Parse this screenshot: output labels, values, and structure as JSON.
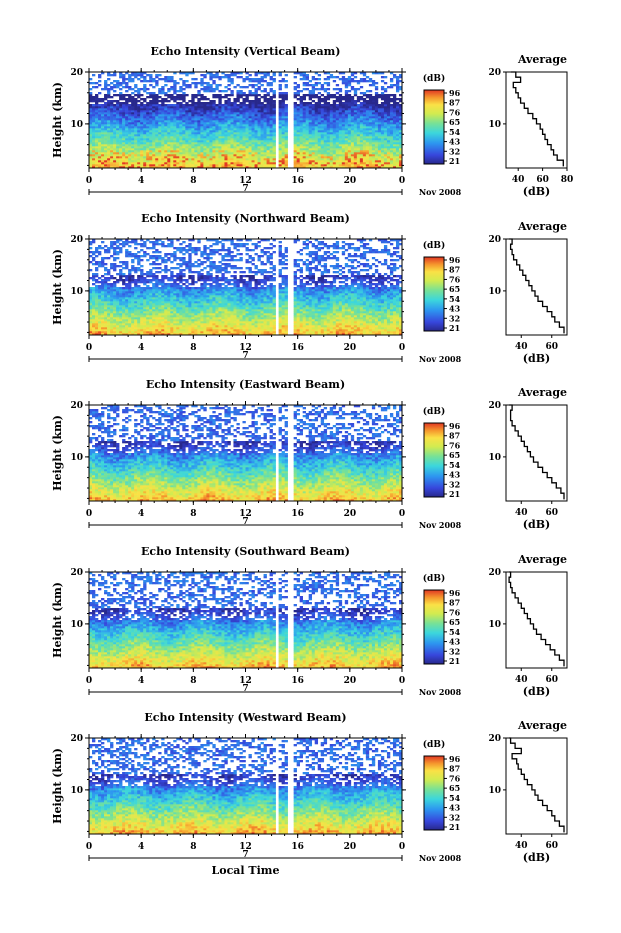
{
  "chart_data": [
    {
      "type": "heatmap",
      "title": "Echo Intensity (Vertical Beam)",
      "ylabel": "Height (km)",
      "x_ticks": [
        "0",
        "4",
        "8",
        "12",
        "16",
        "20",
        "0"
      ],
      "y_ticks": [
        "20",
        "10"
      ],
      "xlim": [
        0,
        24
      ],
      "ylim": [
        1.5,
        20
      ],
      "date_marker": "7",
      "month_label": "Nov 2008",
      "data_gaps_hours": [
        [
          14.3,
          14.6
        ],
        [
          15.3,
          15.6
        ]
      ],
      "colorbar": {
        "unit": "(dB)",
        "ticks": [
          "96",
          "87",
          "76",
          "65",
          "54",
          "43",
          "32",
          "21"
        ]
      },
      "average_profile": {
        "title": "Average",
        "xlabel": "(dB)",
        "x_ticks": [
          "40",
          "60",
          "80"
        ],
        "y_ticks": [
          "20",
          "10"
        ],
        "xlim": [
          30,
          80
        ],
        "ylim": [
          1.5,
          20
        ],
        "height_km": [
          1.8,
          3,
          4,
          5,
          6,
          7,
          8,
          9,
          10,
          11,
          12,
          13,
          14,
          15,
          16,
          17,
          18,
          19,
          20
        ],
        "db": [
          77,
          72,
          69,
          67,
          64,
          62,
          60,
          58,
          55,
          52,
          48,
          45,
          42,
          40,
          38,
          36,
          42,
          38,
          34
        ]
      }
    },
    {
      "type": "heatmap",
      "title": "Echo Intensity (Northward Beam)",
      "ylabel": "Height (km)",
      "x_ticks": [
        "0",
        "4",
        "8",
        "12",
        "16",
        "20",
        "0"
      ],
      "y_ticks": [
        "20",
        "10"
      ],
      "xlim": [
        0,
        24
      ],
      "ylim": [
        1.5,
        20
      ],
      "date_marker": "7",
      "month_label": "Nov 2008",
      "data_gaps_hours": [
        [
          14.3,
          14.6
        ],
        [
          15.3,
          15.6
        ]
      ],
      "colorbar": {
        "unit": "(dB)",
        "ticks": [
          "96",
          "87",
          "76",
          "65",
          "54",
          "43",
          "32",
          "21"
        ]
      },
      "average_profile": {
        "title": "Average",
        "xlabel": "(dB)",
        "x_ticks": [
          "40",
          "60"
        ],
        "y_ticks": [
          "20",
          "10"
        ],
        "xlim": [
          30,
          70
        ],
        "ylim": [
          1.5,
          20
        ],
        "height_km": [
          1.8,
          3,
          4,
          5,
          6,
          7,
          8,
          9,
          10,
          11,
          12,
          13,
          14,
          15,
          16,
          17,
          18,
          19,
          20
        ],
        "db": [
          68,
          65,
          62,
          60,
          57,
          54,
          51,
          49,
          47,
          45,
          43,
          41,
          39,
          37,
          35,
          34,
          33,
          34,
          32
        ]
      }
    },
    {
      "type": "heatmap",
      "title": "Echo Intensity (Eastward Beam)",
      "ylabel": "Height (km)",
      "x_ticks": [
        "0",
        "4",
        "8",
        "12",
        "16",
        "20",
        "0"
      ],
      "y_ticks": [
        "20",
        "10"
      ],
      "xlim": [
        0,
        24
      ],
      "ylim": [
        1.5,
        20
      ],
      "date_marker": "7",
      "month_label": "Nov 2008",
      "data_gaps_hours": [
        [
          14.3,
          14.6
        ],
        [
          15.3,
          15.6
        ]
      ],
      "colorbar": {
        "unit": "(dB)",
        "ticks": [
          "96",
          "87",
          "76",
          "65",
          "54",
          "43",
          "32",
          "21"
        ]
      },
      "average_profile": {
        "title": "Average",
        "xlabel": "(dB)",
        "x_ticks": [
          "40",
          "60"
        ],
        "y_ticks": [
          "20",
          "10"
        ],
        "xlim": [
          30,
          70
        ],
        "ylim": [
          1.5,
          20
        ],
        "height_km": [
          1.8,
          3,
          4,
          5,
          6,
          7,
          8,
          9,
          10,
          11,
          12,
          13,
          14,
          15,
          16,
          17,
          18,
          19,
          20
        ],
        "db": [
          68,
          66,
          63,
          60,
          57,
          54,
          51,
          48,
          46,
          44,
          42,
          40,
          38,
          36,
          34,
          33,
          33,
          34,
          32
        ]
      }
    },
    {
      "type": "heatmap",
      "title": "Echo Intensity (Southward Beam)",
      "ylabel": "Height (km)",
      "x_ticks": [
        "0",
        "4",
        "8",
        "12",
        "16",
        "20",
        "0"
      ],
      "y_ticks": [
        "20",
        "10"
      ],
      "xlim": [
        0,
        24
      ],
      "ylim": [
        1.5,
        20
      ],
      "date_marker": "7",
      "month_label": "Nov 2008",
      "data_gaps_hours": [
        [
          14.3,
          14.6
        ],
        [
          15.3,
          15.6
        ]
      ],
      "colorbar": {
        "unit": "(dB)",
        "ticks": [
          "96",
          "87",
          "76",
          "65",
          "54",
          "43",
          "32",
          "21"
        ]
      },
      "average_profile": {
        "title": "Average",
        "xlabel": "(dB)",
        "x_ticks": [
          "40",
          "60"
        ],
        "y_ticks": [
          "20",
          "10"
        ],
        "xlim": [
          30,
          70
        ],
        "ylim": [
          1.5,
          20
        ],
        "height_km": [
          1.8,
          3,
          4,
          5,
          6,
          7,
          8,
          9,
          10,
          11,
          12,
          13,
          14,
          15,
          16,
          17,
          18,
          19,
          20
        ],
        "db": [
          68,
          65,
          62,
          59,
          56,
          53,
          50,
          48,
          46,
          44,
          42,
          40,
          38,
          36,
          34,
          33,
          32,
          33,
          32
        ]
      }
    },
    {
      "type": "heatmap",
      "title": "Echo Intensity (Westward Beam)",
      "ylabel": "Height (km)",
      "xlabel": "Local Time",
      "x_ticks": [
        "0",
        "4",
        "8",
        "12",
        "16",
        "20",
        "0"
      ],
      "y_ticks": [
        "20",
        "10"
      ],
      "xlim": [
        0,
        24
      ],
      "ylim": [
        1.5,
        20
      ],
      "date_marker": "7",
      "month_label": "Nov 2008",
      "data_gaps_hours": [
        [
          14.3,
          14.6
        ],
        [
          15.3,
          15.6
        ]
      ],
      "colorbar": {
        "unit": "(dB)",
        "ticks": [
          "96",
          "87",
          "76",
          "65",
          "54",
          "43",
          "32",
          "21"
        ]
      },
      "average_profile": {
        "title": "Average",
        "xlabel": "(dB)",
        "x_ticks": [
          "40",
          "60"
        ],
        "y_ticks": [
          "20",
          "10"
        ],
        "xlim": [
          30,
          70
        ],
        "ylim": [
          1.5,
          20
        ],
        "height_km": [
          1.8,
          3,
          4,
          5,
          6,
          7,
          8,
          9,
          10,
          11,
          12,
          13,
          14,
          15,
          16,
          17,
          18,
          19,
          20
        ],
        "db": [
          68,
          65,
          62,
          60,
          57,
          54,
          51,
          49,
          47,
          44,
          42,
          40,
          38,
          37,
          34,
          40,
          36,
          33,
          32
        ]
      }
    }
  ]
}
